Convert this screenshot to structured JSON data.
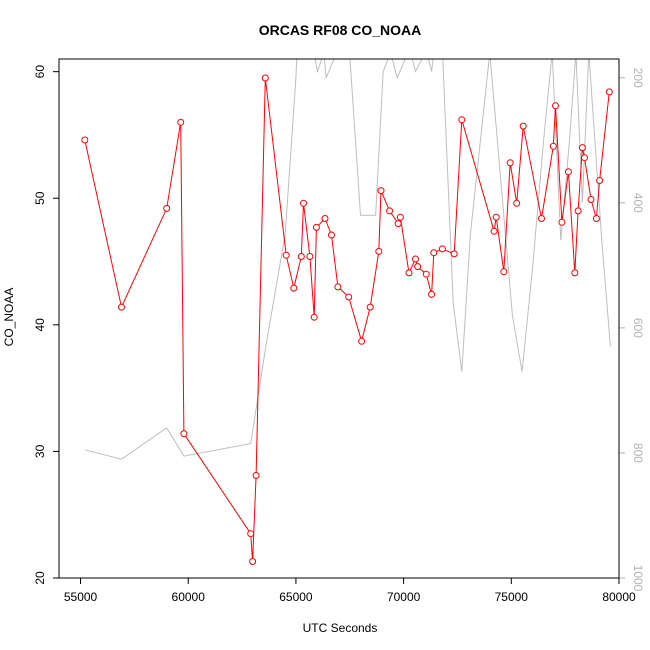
{
  "chart_data": {
    "type": "line",
    "title": "ORCAS RF08 CO_NOAA",
    "xlabel": "UTC Seconds",
    "ylabel": "CO_NOAA",
    "y2label": "",
    "xlim": [
      54000,
      80000
    ],
    "ylim": [
      20,
      61
    ],
    "y2lim": [
      1000,
      170
    ],
    "x_ticks": [
      55000,
      60000,
      65000,
      70000,
      75000,
      80000
    ],
    "y_ticks": [
      20,
      30,
      40,
      50,
      60
    ],
    "y2_ticks": [
      200,
      400,
      600,
      800,
      1000
    ],
    "grid": false,
    "colors": {
      "co": "#ff0000",
      "pressure": "#bebebe"
    },
    "series": [
      {
        "axis": "left",
        "style": "line+points",
        "x": [
          55200,
          56900,
          59000,
          59650,
          59800,
          62900,
          62990,
          63150,
          63580,
          64550,
          64900,
          65250,
          65350,
          65650,
          65850,
          65950,
          66350,
          66650,
          66950,
          67450,
          68050,
          68450,
          68850,
          68950,
          69350,
          69750,
          69850,
          70250,
          70550,
          70650,
          71050,
          71300,
          71400,
          71800,
          72350,
          72700,
          74200,
          74300,
          74650,
          74950,
          75250,
          75550,
          76400,
          76950,
          77050,
          77350,
          77650,
          77950,
          78100,
          78300,
          78400,
          78700,
          78950,
          79100,
          79550
        ],
        "y": [
          54.6,
          41.4,
          49.2,
          56.0,
          31.4,
          23.5,
          21.3,
          28.1,
          59.5,
          45.5,
          42.9,
          45.4,
          49.6,
          45.4,
          40.6,
          47.7,
          48.4,
          47.1,
          43.0,
          42.2,
          38.7,
          41.4,
          45.8,
          50.6,
          49.0,
          48.0,
          48.5,
          44.1,
          45.2,
          44.6,
          44.0,
          42.4,
          45.7,
          46.0,
          45.6,
          56.2,
          47.4,
          48.5,
          44.2,
          52.8,
          49.6,
          55.7,
          48.4,
          54.1,
          57.3,
          48.1,
          52.1,
          44.1,
          49.0,
          54.0,
          53.2,
          49.9,
          48.4,
          51.4,
          58.4
        ]
      },
      {
        "axis": "right",
        "style": "line",
        "x": [
          55200,
          56900,
          59000,
          59800,
          62900,
          63600,
          64500,
          65000,
          65050,
          65800,
          66000,
          66300,
          66400,
          66900,
          67100,
          67500,
          68000,
          68700,
          69050,
          69400,
          69700,
          70200,
          70300,
          70550,
          71000,
          71050,
          71300,
          71400,
          71800,
          72300,
          72700,
          73100,
          74000,
          75050,
          75500,
          76000,
          76500,
          76900,
          77300,
          77700,
          78000,
          78300,
          78600,
          79200,
          79600
        ],
        "y": [
          795,
          810,
          760,
          805,
          785,
          630,
          450,
          200,
          160,
          155,
          190,
          160,
          200,
          160,
          155,
          165,
          420,
          420,
          190,
          160,
          200,
          160,
          155,
          190,
          160,
          155,
          190,
          160,
          155,
          560,
          670,
          450,
          160,
          580,
          670,
          500,
          300,
          160,
          460,
          300,
          160,
          400,
          160,
          460,
          630
        ]
      }
    ]
  }
}
